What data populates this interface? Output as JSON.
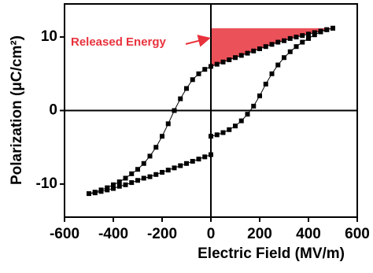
{
  "chart_data": {
    "type": "line",
    "xlabel": "Electric Field (MV/m)",
    "ylabel": "Polarization (μC/cm²)",
    "annotation": "Released Energy",
    "color": "#000000",
    "shade_color": "#e8323c",
    "x": [
      500,
      475,
      450,
      425,
      400,
      375,
      350,
      325,
      300,
      275,
      250,
      225,
      200,
      175,
      150,
      125,
      100,
      75,
      50,
      25,
      0,
      -25,
      -50,
      -75,
      -100,
      -125,
      -150,
      -175,
      -200,
      -225,
      -250,
      -275,
      -300,
      -325,
      -350,
      -375,
      -400,
      -425,
      -450,
      -475,
      -500,
      -475,
      -450,
      -425,
      -400,
      -375,
      -350,
      -325,
      -300,
      -275,
      -250,
      -225,
      -200,
      -175,
      -150,
      -125,
      -100,
      -75,
      -50,
      -25,
      0,
      0,
      25,
      50,
      75,
      100,
      125,
      150,
      175,
      200,
      225,
      250,
      275,
      300,
      325,
      350,
      375,
      400,
      425,
      450,
      475,
      500
    ],
    "values": [
      11.2,
      11.0,
      10.8,
      10.6,
      10.4,
      10.2,
      10.0,
      9.8,
      9.5,
      9.3,
      9.0,
      8.7,
      8.4,
      8.1,
      7.8,
      7.5,
      7.2,
      6.9,
      6.6,
      6.3,
      6.0,
      5.6,
      5.0,
      4.2,
      3.0,
      1.6,
      0,
      -1.8,
      -3.5,
      -5.0,
      -6.2,
      -7.2,
      -8.0,
      -8.6,
      -9.2,
      -9.7,
      -10.1,
      -10.5,
      -10.8,
      -11.1,
      -11.3,
      -11.2,
      -11.0,
      -10.8,
      -10.6,
      -10.3,
      -10.1,
      -9.8,
      -9.5,
      -9.2,
      -9.0,
      -8.7,
      -8.4,
      -8.1,
      -7.8,
      -7.5,
      -7.2,
      -6.9,
      -6.6,
      -6.3,
      -6.0,
      -3.5,
      -3.3,
      -3.0,
      -2.6,
      -2.1,
      -1.4,
      -0.5,
      0.6,
      2.0,
      3.6,
      5.0,
      6.2,
      7.2,
      8.0,
      8.7,
      9.3,
      9.8,
      10.3,
      10.7,
      11.0,
      11.2
    ],
    "xlim": [
      -600,
      600
    ],
    "xticks": [
      -600,
      -400,
      -200,
      0,
      200,
      400,
      600
    ],
    "ylim": [
      -14.5,
      14.5
    ],
    "yticks": [
      -10,
      0,
      10
    ]
  }
}
